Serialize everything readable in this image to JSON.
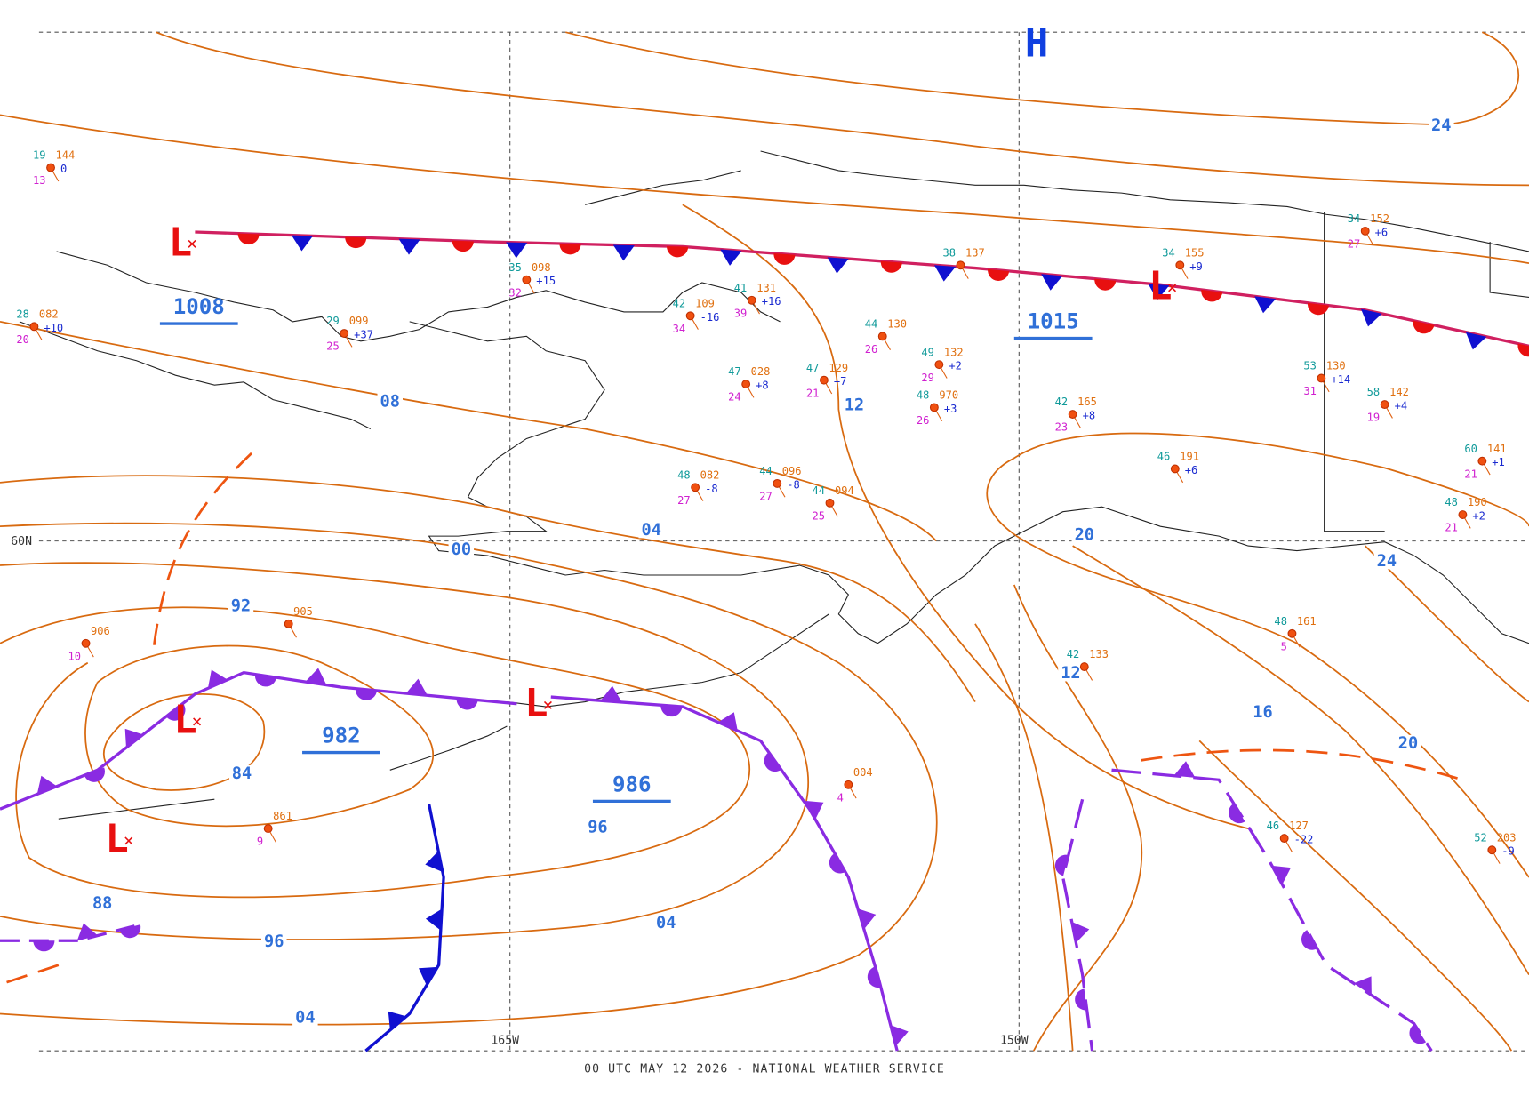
{
  "map": {
    "footer": "00 UTC MAY 12 2026 - NATIONAL WEATHER SERVICE",
    "grid_labels": [
      "60N",
      "165W",
      "150W"
    ],
    "center_letters": [
      "L",
      "L",
      "L",
      "L",
      "L",
      "H"
    ],
    "center_pressures": [
      "1008",
      "1015",
      "982",
      "986"
    ],
    "isobar_labels": [
      "24",
      "08",
      "12",
      "00",
      "04",
      "20",
      "24",
      "92",
      "84",
      "88",
      "96",
      "96",
      "04",
      "04",
      "12",
      "16",
      "20"
    ],
    "stations": [
      {
        "temp": "19",
        "pressure": "144",
        "tendency": "0",
        "dewpoint": "13"
      },
      {
        "temp": "35",
        "pressure": "098",
        "tendency": "+15",
        "dewpoint": "32"
      },
      {
        "temp": "42",
        "pressure": "109",
        "tendency": "-16",
        "dewpoint": "34"
      },
      {
        "temp": "41",
        "pressure": "131",
        "tendency": "+16",
        "dewpoint": "39"
      },
      {
        "temp": "44",
        "pressure": "130",
        "dewpoint": "26"
      },
      {
        "temp": "38",
        "pressure": "137"
      },
      {
        "temp": "34",
        "pressure": "155",
        "tendency": "+9"
      },
      {
        "temp": "34",
        "pressure": "152",
        "tendency": "+6",
        "dewpoint": "27"
      },
      {
        "temp": "53",
        "pressure": "130",
        "tendency": "+14",
        "dewpoint": "31"
      },
      {
        "temp": "58",
        "pressure": "142",
        "tendency": "+4",
        "dewpoint": "19"
      },
      {
        "temp": "49",
        "pressure": "132",
        "tendency": "+2",
        "dewpoint": "29"
      },
      {
        "temp": "48",
        "pressure": "970",
        "tendency": "+3",
        "dewpoint": "26"
      },
      {
        "temp": "42",
        "pressure": "165",
        "tendency": "+8",
        "dewpoint": "23"
      },
      {
        "temp": "46",
        "pressure": "191",
        "tendency": "+6"
      },
      {
        "temp": "60",
        "pressure": "141",
        "tendency": "+1",
        "dewpoint": "21"
      },
      {
        "temp": "48",
        "pressure": "190",
        "tendency": "+2",
        "dewpoint": "21"
      },
      {
        "temp": "47",
        "pressure": "028",
        "tendency": "+8",
        "dewpoint": "24"
      },
      {
        "temp": "47",
        "pressure": "129",
        "tendency": "+7",
        "dewpoint": "21"
      },
      {
        "temp": "44",
        "pressure": "094",
        "dewpoint": "25"
      },
      {
        "temp": "48",
        "pressure": "082",
        "tendency": "-8",
        "dewpoint": "27"
      },
      {
        "temp": "44",
        "pressure": "096",
        "tendency": "-8",
        "dewpoint": "27"
      },
      {
        "temp": "28",
        "pressure": "082",
        "tendency": "+10",
        "dewpoint": "20"
      },
      {
        "temp": "29",
        "pressure": "099",
        "tendency": "+37",
        "dewpoint": "25"
      },
      {
        "temp": "42",
        "pressure": "133"
      },
      {
        "temp": "46",
        "pressure": "127",
        "tendency": "-22"
      },
      {
        "temp": "52",
        "pressure": "203",
        "tendency": "-9"
      },
      {
        "temp": "48",
        "pressure": "161",
        "dewpoint": "5"
      },
      {
        "pressure": "861",
        "dewpoint": "9"
      },
      {
        "pressure": "004",
        "dewpoint": "4"
      },
      {
        "pressure": "905"
      },
      {
        "pressure": "906",
        "dewpoint": "10"
      }
    ]
  }
}
